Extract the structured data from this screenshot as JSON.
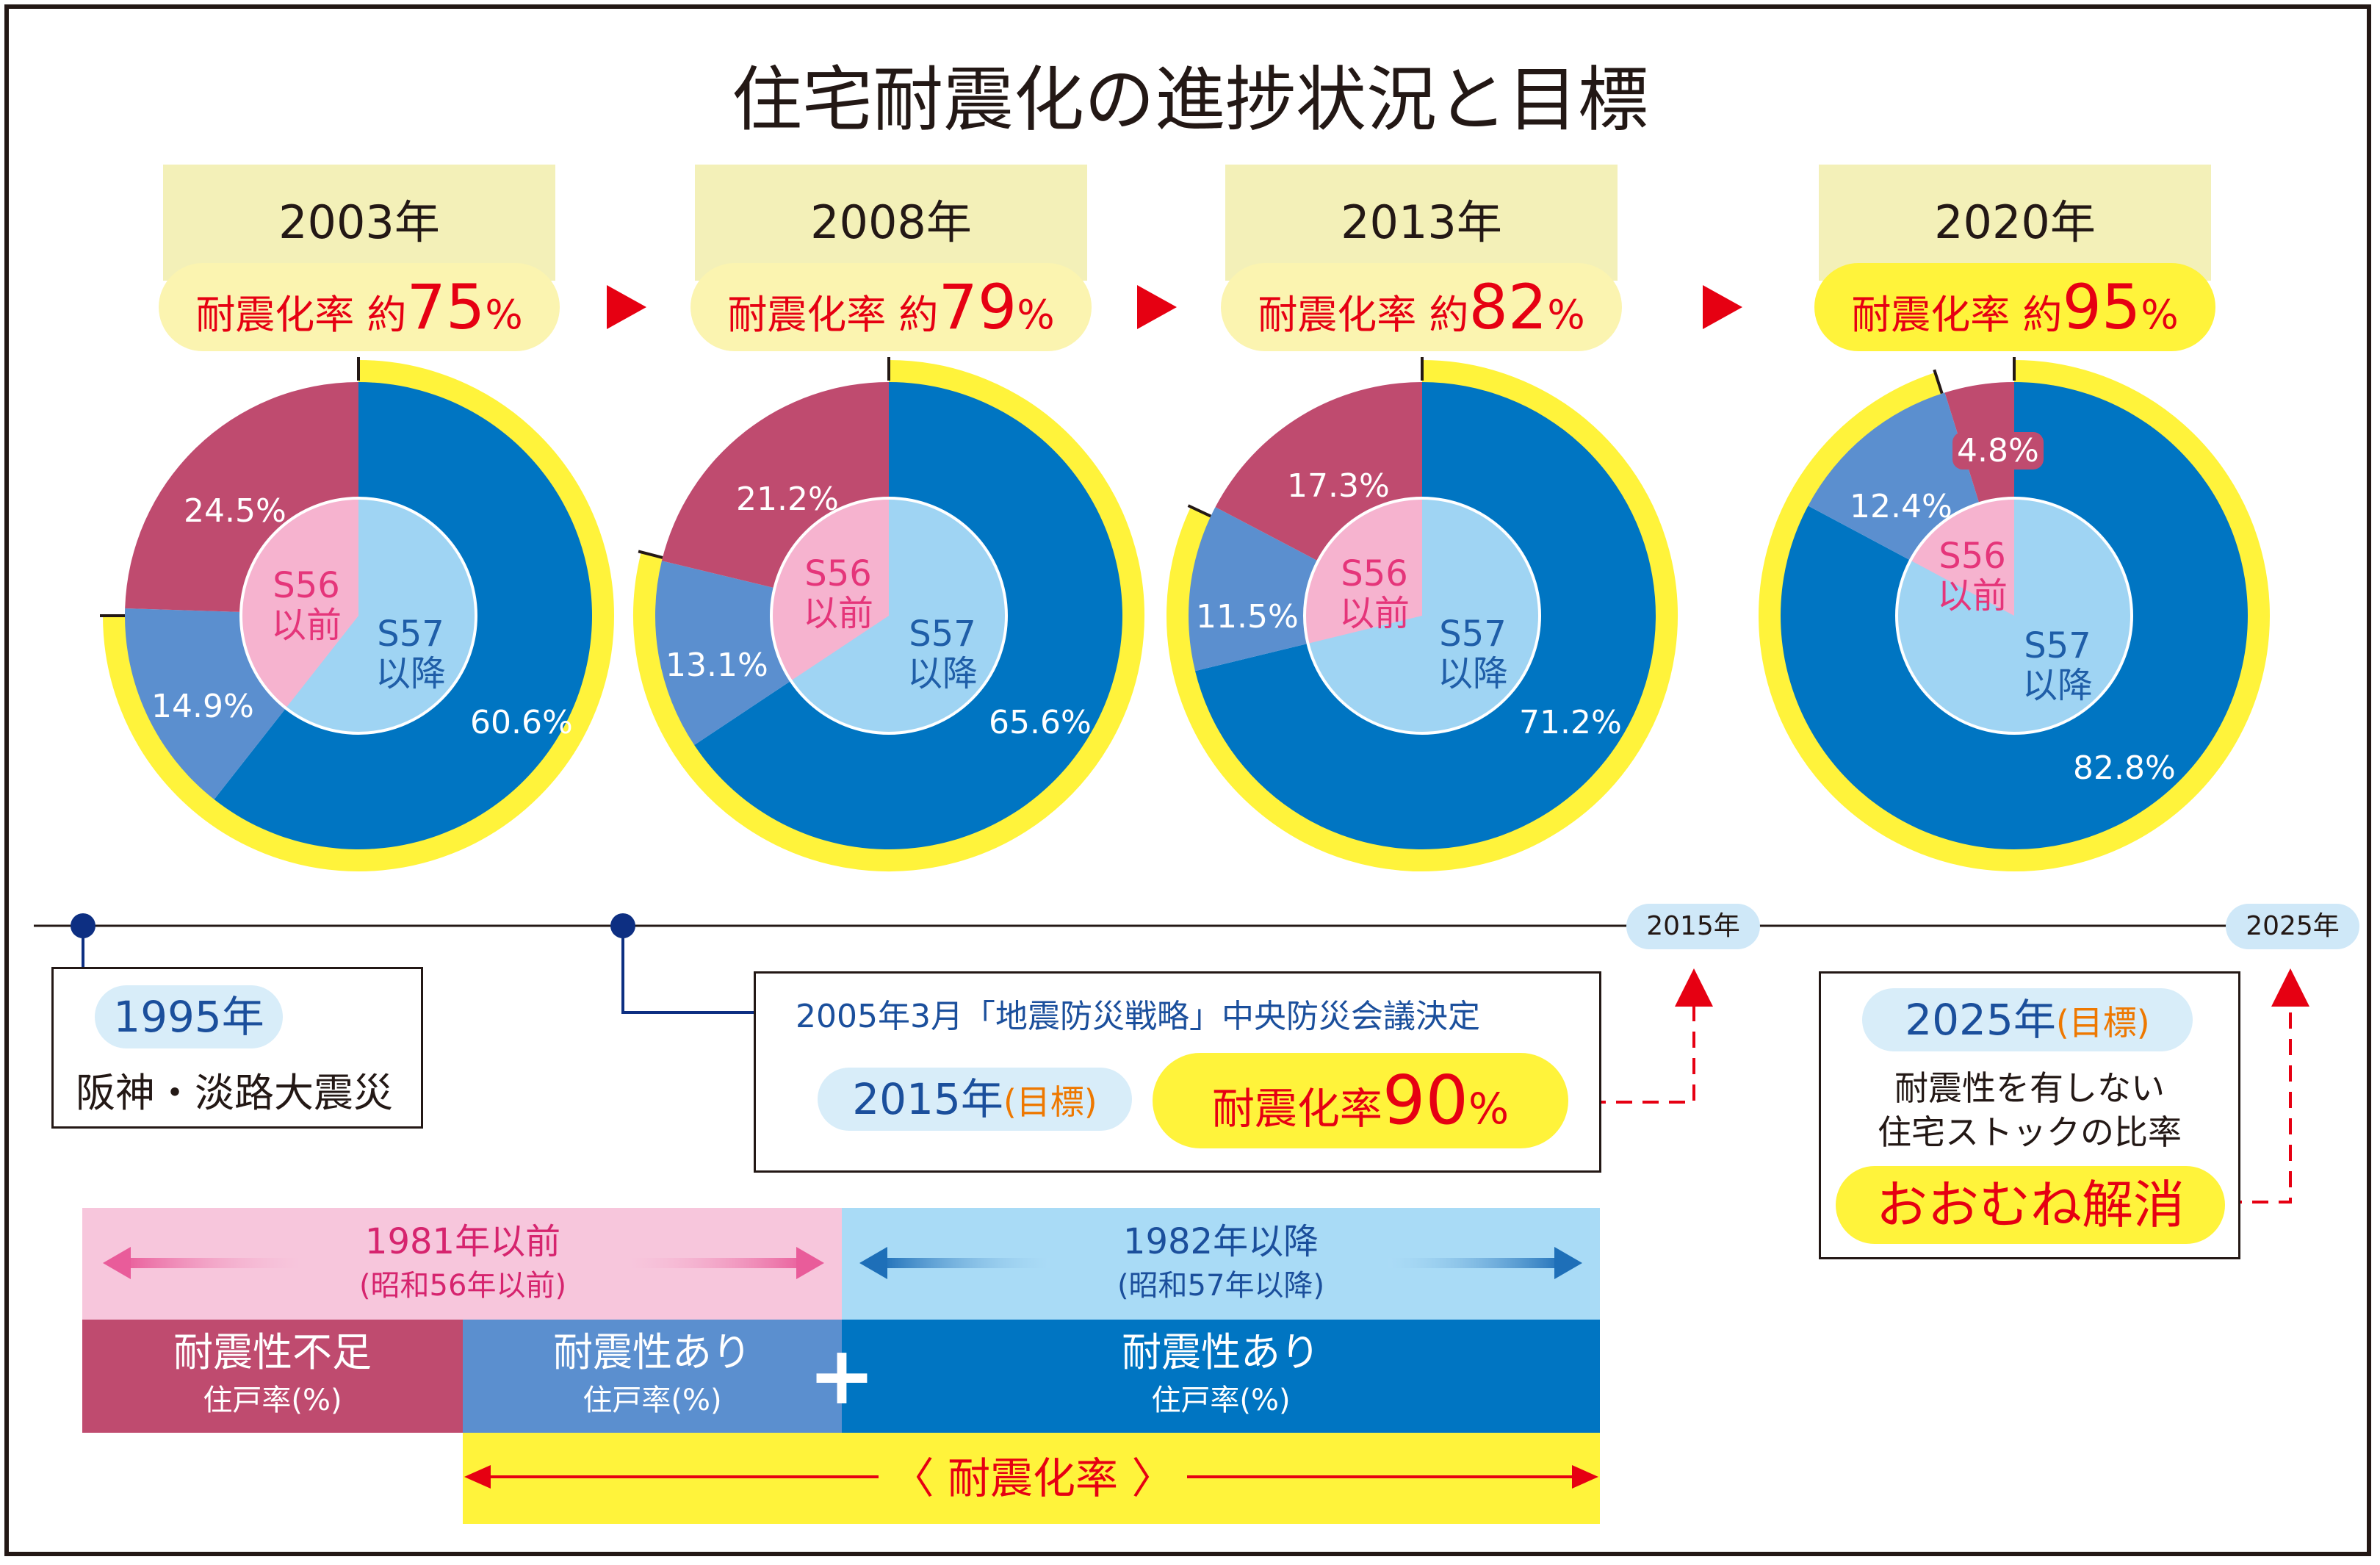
{
  "title": "住宅耐震化の進捗状況と目標",
  "colors": {
    "no_seismic_old": "#bf4b6f",
    "seismic_old": "#5b8fcf",
    "seismic_new": "#0075c2",
    "inner_old": "#f6b3cf",
    "inner_new": "#9fd4f3",
    "ring": "#fff33b",
    "arrow_red": "#e60012"
  },
  "rate_prefix": "耐震化率 約",
  "percent_sign": "%",
  "inner_labels": {
    "old": "S56\n以前",
    "new": "S57\n以降"
  },
  "chart_data": [
    {
      "type": "pie",
      "year": "2003年",
      "rate": "75",
      "seismic_rate_pct": 75,
      "slices": [
        {
          "name": "耐震性あり(S57以降)",
          "value": 60.6,
          "label": "60.6%"
        },
        {
          "name": "耐震性不足(S56以前)",
          "value": 24.5,
          "label": "24.5%"
        },
        {
          "name": "耐震性あり(S56以前)",
          "value": 14.9,
          "label": "14.9%"
        }
      ]
    },
    {
      "type": "pie",
      "year": "2008年",
      "rate": "79",
      "seismic_rate_pct": 79,
      "slices": [
        {
          "name": "耐震性あり(S57以降)",
          "value": 65.6,
          "label": "65.6%"
        },
        {
          "name": "耐震性不足(S56以前)",
          "value": 21.2,
          "label": "21.2%"
        },
        {
          "name": "耐震性あり(S56以前)",
          "value": 13.1,
          "label": "13.1%"
        }
      ]
    },
    {
      "type": "pie",
      "year": "2013年",
      "rate": "82",
      "seismic_rate_pct": 82,
      "slices": [
        {
          "name": "耐震性あり(S57以降)",
          "value": 71.2,
          "label": "71.2%"
        },
        {
          "name": "耐震性不足(S56以前)",
          "value": 17.3,
          "label": "17.3%"
        },
        {
          "name": "耐震性あり(S56以前)",
          "value": 11.5,
          "label": "11.5%"
        }
      ]
    },
    {
      "type": "pie",
      "year": "2020年",
      "rate": "95",
      "seismic_rate_pct": 95,
      "slices": [
        {
          "name": "耐震性あり(S57以降)",
          "value": 82.8,
          "label": "82.8%"
        },
        {
          "name": "耐震性不足(S56以前)",
          "value": 4.8,
          "label": "4.8%"
        },
        {
          "name": "耐震性あり(S56以前)",
          "value": 12.4,
          "label": "12.4%"
        }
      ]
    }
  ],
  "timeline": {
    "tag_2015": "2015年",
    "tag_2025": "2025年",
    "event_1995_year": "1995年",
    "event_1995_text": "阪神・淡路大震災",
    "event_2005_text": "2005年3月「地震防災戦略」中央防災会議決定",
    "goal_2015_year": "2015年",
    "goal_label": "(目標)",
    "goal_2015_rate_prefix": "耐震化率",
    "goal_2015_rate_value": "90",
    "goal_2015_rate_pct": "%",
    "goal_2025_year": "2025年",
    "goal_2025_text1": "耐震性を有しない",
    "goal_2025_text2": "住宅ストックの比率",
    "goal_2025_result": "おおむね解消"
  },
  "legend": {
    "before_1981_l1": "1981年以前",
    "before_1981_l2": "(昭和56年以前)",
    "after_1982_l1": "1982年以降",
    "after_1982_l2": "(昭和57年以降)",
    "cell1_l1": "耐震性不足",
    "cell1_l2": "住戸率(%)",
    "cell2_l1": "耐震性あり",
    "cell2_l2": "住戸率(%)",
    "cell3_l1": "耐震性あり",
    "cell3_l2": "住戸率(%)",
    "plus": "+",
    "rate_bracket": "〈 耐震化率 〉"
  }
}
